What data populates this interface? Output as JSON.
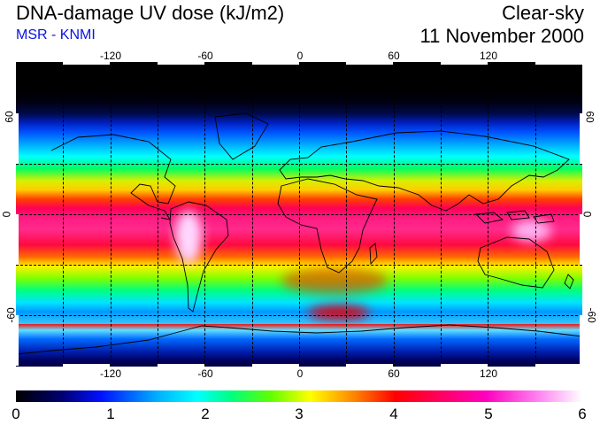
{
  "header": {
    "title": "DNA-damage UV dose (kJ/m2)",
    "subtitle": "MSR - KNMI",
    "condition": "Clear-sky",
    "date": "11 November 2000"
  },
  "map": {
    "longitude_labels": [
      "-120",
      "-60",
      "0",
      "60",
      "120"
    ],
    "latitude_labels_left": [
      "60",
      "0",
      "-60"
    ],
    "latitude_labels_right": [
      "60",
      "0",
      "-60"
    ]
  },
  "colorbar": {
    "labels": [
      "0",
      "1",
      "2",
      "3",
      "4",
      "5",
      "6"
    ]
  },
  "colors": {
    "subtitle": "#0a14e0",
    "grid": "#000000"
  }
}
